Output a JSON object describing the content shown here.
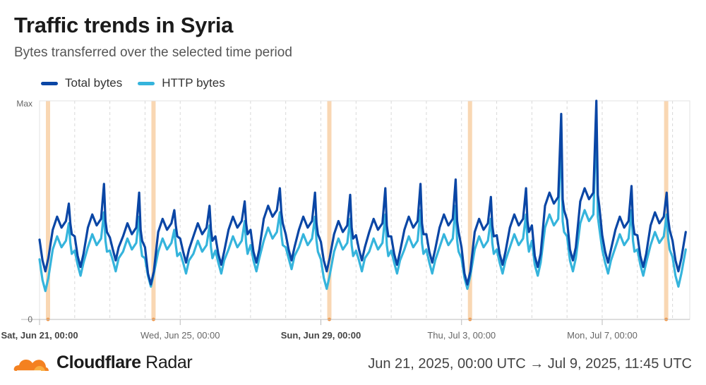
{
  "header": {
    "title": "Traffic trends in Syria",
    "subtitle": "Bytes transferred over the selected time period"
  },
  "footer": {
    "brand_bold": "Cloudflare",
    "brand_regular": " Radar",
    "range": "Jun 21, 2025, 00:00 UTC → Jul 9, 2025, 11:45 UTC"
  },
  "colors": {
    "total": "#0a46a5",
    "http": "#35b4dc",
    "event": "#f7c99a",
    "event_marker": "#f39a4b",
    "grid": "#d8d8d8",
    "axis": "#bbbbbb"
  },
  "chart_data": {
    "type": "line",
    "xlabel": "",
    "ylabel": "",
    "y_tick_labels": [
      "Max",
      "0"
    ],
    "ylim": [
      0,
      1
    ],
    "x_range": [
      "2025-06-21T00:00",
      "2025-07-09T11:45"
    ],
    "x_tick_labels": [
      {
        "date": "2025-06-21",
        "label": "Sat, Jun 21, 00:00",
        "bold": true
      },
      {
        "date": "2025-06-25",
        "label": "Wed, Jun 25, 00:00",
        "bold": false
      },
      {
        "date": "2025-06-29",
        "label": "Sun, Jun 29, 00:00",
        "bold": true
      },
      {
        "date": "2025-07-03",
        "label": "Thu, Jul 3, 00:00",
        "bold": false
      },
      {
        "date": "2025-07-07",
        "label": "Mon, Jul 7, 00:00",
        "bold": false
      }
    ],
    "grid": "vertical dashed daily",
    "legend": "top-left",
    "event_dates": [
      "2025-06-21",
      "2025-06-24",
      "2025-06-29",
      "2025-07-03",
      "2025-07-09"
    ],
    "series": [
      {
        "name": "Total bytes",
        "daily_points": [
          {
            "date": "2025-06-21",
            "low": 0.22,
            "high": 0.47,
            "peak": 0.53
          },
          {
            "date": "2025-06-22",
            "low": 0.24,
            "high": 0.48,
            "peak": 0.62
          },
          {
            "date": "2025-06-23",
            "low": 0.27,
            "high": 0.44,
            "peak": 0.58
          },
          {
            "date": "2025-06-24",
            "low": 0.16,
            "high": 0.46,
            "peak": 0.5
          },
          {
            "date": "2025-06-25",
            "low": 0.26,
            "high": 0.44,
            "peak": 0.52
          },
          {
            "date": "2025-06-26",
            "low": 0.25,
            "high": 0.47,
            "peak": 0.54
          },
          {
            "date": "2025-06-27",
            "low": 0.26,
            "high": 0.52,
            "peak": 0.6
          },
          {
            "date": "2025-06-28",
            "low": 0.27,
            "high": 0.47,
            "peak": 0.58
          },
          {
            "date": "2025-06-29",
            "low": 0.22,
            "high": 0.45,
            "peak": 0.57
          },
          {
            "date": "2025-06-30",
            "low": 0.27,
            "high": 0.46,
            "peak": 0.6
          },
          {
            "date": "2025-07-01",
            "low": 0.25,
            "high": 0.47,
            "peak": 0.62
          },
          {
            "date": "2025-07-02",
            "low": 0.26,
            "high": 0.48,
            "peak": 0.64
          },
          {
            "date": "2025-07-03",
            "low": 0.16,
            "high": 0.46,
            "peak": 0.56
          },
          {
            "date": "2025-07-04",
            "low": 0.25,
            "high": 0.48,
            "peak": 0.6
          },
          {
            "date": "2025-07-05",
            "low": 0.24,
            "high": 0.58,
            "peak": 0.94
          },
          {
            "date": "2025-07-06",
            "low": 0.27,
            "high": 0.6,
            "peak": 1.0
          },
          {
            "date": "2025-07-07",
            "low": 0.26,
            "high": 0.47,
            "peak": 0.61
          },
          {
            "date": "2025-07-08",
            "low": 0.24,
            "high": 0.49,
            "peak": 0.58
          },
          {
            "date": "2025-07-09",
            "low": 0.22,
            "high": 0.46,
            "peak": 0.72
          }
        ]
      },
      {
        "name": "HTTP bytes",
        "daily_points": [
          {
            "date": "2025-06-21",
            "low": 0.13,
            "high": 0.38,
            "peak": 0.44
          },
          {
            "date": "2025-06-22",
            "low": 0.2,
            "high": 0.39,
            "peak": 0.49
          },
          {
            "date": "2025-06-23",
            "low": 0.22,
            "high": 0.37,
            "peak": 0.47
          },
          {
            "date": "2025-06-24",
            "low": 0.15,
            "high": 0.37,
            "peak": 0.41
          },
          {
            "date": "2025-06-25",
            "low": 0.21,
            "high": 0.36,
            "peak": 0.43
          },
          {
            "date": "2025-06-26",
            "low": 0.21,
            "high": 0.38,
            "peak": 0.45
          },
          {
            "date": "2025-06-27",
            "low": 0.22,
            "high": 0.42,
            "peak": 0.49
          },
          {
            "date": "2025-06-28",
            "low": 0.23,
            "high": 0.39,
            "peak": 0.47
          },
          {
            "date": "2025-06-29",
            "low": 0.14,
            "high": 0.37,
            "peak": 0.46
          },
          {
            "date": "2025-06-30",
            "low": 0.22,
            "high": 0.37,
            "peak": 0.48
          },
          {
            "date": "2025-07-01",
            "low": 0.21,
            "high": 0.38,
            "peak": 0.5
          },
          {
            "date": "2025-07-02",
            "low": 0.21,
            "high": 0.39,
            "peak": 0.52
          },
          {
            "date": "2025-07-03",
            "low": 0.14,
            "high": 0.38,
            "peak": 0.46
          },
          {
            "date": "2025-07-04",
            "low": 0.21,
            "high": 0.39,
            "peak": 0.48
          },
          {
            "date": "2025-07-05",
            "low": 0.2,
            "high": 0.48,
            "peak": 0.85
          },
          {
            "date": "2025-07-06",
            "low": 0.22,
            "high": 0.5,
            "peak": 0.92
          },
          {
            "date": "2025-07-07",
            "low": 0.21,
            "high": 0.39,
            "peak": 0.5
          },
          {
            "date": "2025-07-08",
            "low": 0.2,
            "high": 0.4,
            "peak": 0.48
          },
          {
            "date": "2025-07-09",
            "low": 0.15,
            "high": 0.38,
            "peak": 0.63
          }
        ]
      }
    ]
  }
}
